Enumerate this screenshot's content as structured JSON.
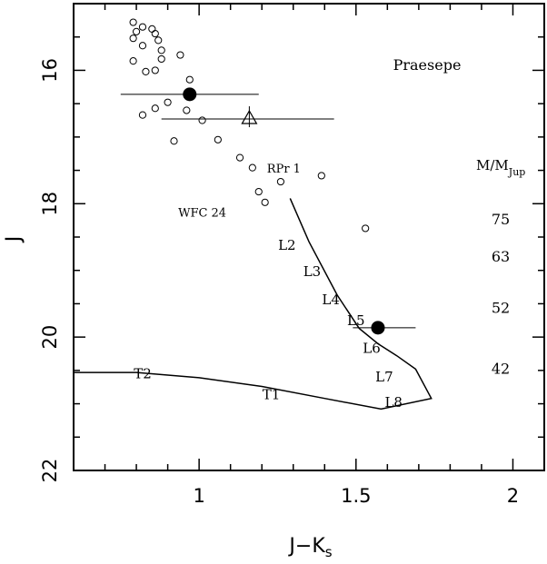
{
  "chart_data": {
    "type": "scatter",
    "title": "Praesepe",
    "xlabel_main": "J−K",
    "xlabel_sub": "s",
    "ylabel": "J",
    "xlim": [
      0.6,
      2.1
    ],
    "ylim": [
      22.0,
      15.0
    ],
    "x_ticks": [
      1,
      1.5,
      2
    ],
    "x_tick_labels": [
      "1",
      "1.5",
      "2"
    ],
    "y_ticks": [
      16,
      18,
      20,
      22
    ],
    "y_tick_labels": [
      "16",
      "18",
      "20",
      "22"
    ],
    "grid": false,
    "open_circles": [
      {
        "x": 0.79,
        "y": 15.28
      },
      {
        "x": 0.82,
        "y": 15.35
      },
      {
        "x": 0.8,
        "y": 15.42
      },
      {
        "x": 0.85,
        "y": 15.38
      },
      {
        "x": 0.86,
        "y": 15.45
      },
      {
        "x": 0.79,
        "y": 15.52
      },
      {
        "x": 0.82,
        "y": 15.63
      },
      {
        "x": 0.87,
        "y": 15.55
      },
      {
        "x": 0.88,
        "y": 15.7
      },
      {
        "x": 0.94,
        "y": 15.77
      },
      {
        "x": 0.88,
        "y": 15.83
      },
      {
        "x": 0.79,
        "y": 15.86
      },
      {
        "x": 0.83,
        "y": 16.02
      },
      {
        "x": 0.86,
        "y": 16.0
      },
      {
        "x": 0.97,
        "y": 16.14
      },
      {
        "x": 0.96,
        "y": 16.6
      },
      {
        "x": 0.9,
        "y": 16.48
      },
      {
        "x": 0.86,
        "y": 16.57
      },
      {
        "x": 0.82,
        "y": 16.67
      },
      {
        "x": 1.01,
        "y": 16.75
      },
      {
        "x": 0.92,
        "y": 17.06
      },
      {
        "x": 1.06,
        "y": 17.04
      },
      {
        "x": 1.13,
        "y": 17.31
      },
      {
        "x": 1.17,
        "y": 17.46
      },
      {
        "x": 1.39,
        "y": 17.58
      },
      {
        "x": 1.26,
        "y": 17.67
      },
      {
        "x": 1.19,
        "y": 17.82
      },
      {
        "x": 1.21,
        "y": 17.98
      },
      {
        "x": 1.53,
        "y": 18.37
      }
    ],
    "filled_circles": [
      {
        "x": 0.97,
        "y": 16.36,
        "xerr": [
          0.75,
          1.19
        ]
      },
      {
        "x": 1.57,
        "y": 19.86,
        "xerr": [
          1.49,
          1.69
        ]
      }
    ],
    "open_triangles": [
      {
        "x": 1.16,
        "y": 16.73,
        "xerr": [
          0.88,
          1.43
        ]
      }
    ],
    "sequence_line": {
      "x": [
        1.29,
        1.35,
        1.44,
        1.51,
        1.57,
        1.63,
        1.69,
        1.74,
        1.58,
        1.4,
        1.2,
        1.0,
        0.8,
        0.6
      ],
      "y": [
        17.92,
        18.57,
        19.37,
        19.87,
        20.1,
        20.28,
        20.48,
        20.92,
        21.08,
        20.92,
        20.74,
        20.61,
        20.53,
        20.53
      ]
    },
    "spectral_labels": [
      {
        "text": "L2",
        "x": 1.28,
        "y": 18.62
      },
      {
        "text": "L3",
        "x": 1.36,
        "y": 19.02
      },
      {
        "text": "L4",
        "x": 1.42,
        "y": 19.44
      },
      {
        "text": "L5",
        "x": 1.5,
        "y": 19.75
      },
      {
        "text": "L6",
        "x": 1.55,
        "y": 20.17
      },
      {
        "text": "L7",
        "x": 1.59,
        "y": 20.6
      },
      {
        "text": "L8",
        "x": 1.62,
        "y": 20.98
      },
      {
        "text": "T1",
        "x": 1.23,
        "y": 20.86
      },
      {
        "text": "T2",
        "x": 0.82,
        "y": 20.55
      }
    ],
    "point_labels": [
      {
        "text": "RPr 1",
        "x": 1.27,
        "y": 17.48
      },
      {
        "text": "WFC 24",
        "x": 1.01,
        "y": 18.14
      }
    ],
    "mass_header_main": "M/M",
    "mass_header_sub": "Jup",
    "mass_labels": [
      {
        "text": "75",
        "y": 18.24
      },
      {
        "text": "63",
        "y": 18.8
      },
      {
        "text": "52",
        "y": 19.57
      },
      {
        "text": "42",
        "y": 20.48
      }
    ]
  }
}
